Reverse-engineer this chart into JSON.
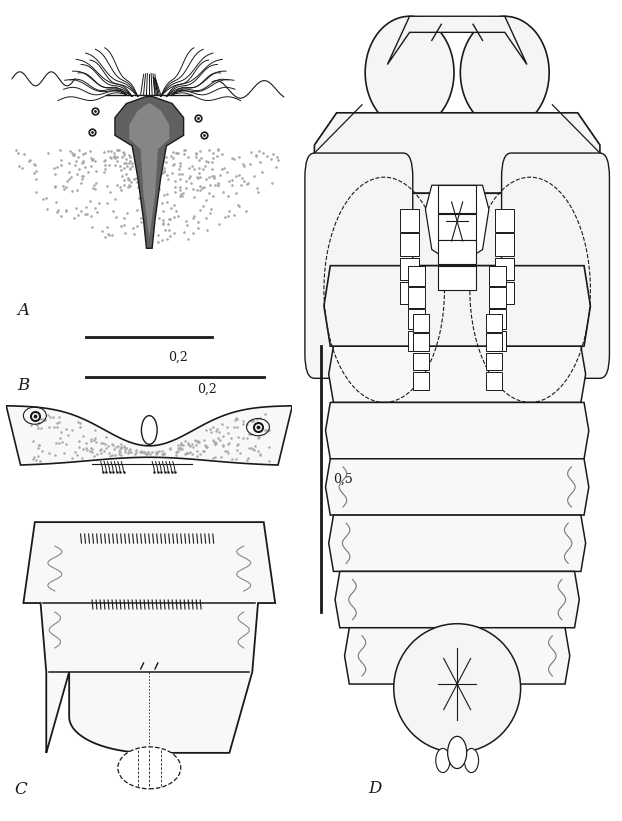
{
  "figure_width": 6.22,
  "figure_height": 8.21,
  "dpi": 100,
  "bg_color": "#ffffff",
  "lc": "#1a1a1a",
  "gray_dark": "#555555",
  "gray_mid": "#888888",
  "gray_light": "#bbbbbb",
  "scale_02": "0,2",
  "scale_05": "0,5",
  "labels": [
    "A",
    "B",
    "C",
    "D"
  ]
}
